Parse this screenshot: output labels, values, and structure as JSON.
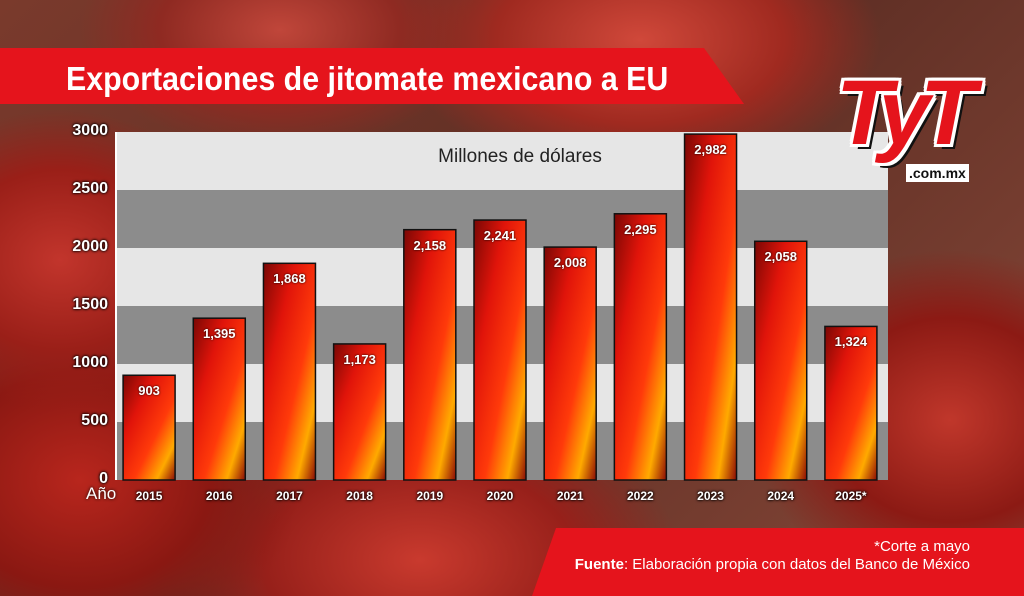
{
  "header": {
    "title": "Exportaciones de jitomate mexicano a EU"
  },
  "logo": {
    "text": "TyT",
    "domain": ".com.mx"
  },
  "footer": {
    "note": "*Corte a mayo",
    "source_label": "Fuente",
    "source_text": ": Elaboración propia con datos del Banco de México"
  },
  "colors": {
    "accent": "#e5141c",
    "bar_top": "#8a0a06",
    "bar_mid": "#ff2a0a",
    "bar_low": "#ffb000"
  },
  "chart_data": {
    "type": "bar",
    "title": "Exportaciones de jitomate mexicano a EU",
    "units_label": "Millones de dólares",
    "xlabel": "Año",
    "ylabel": "",
    "ylim": [
      0,
      3000
    ],
    "yticks": [
      "0",
      "500",
      "1000",
      "1500",
      "2000",
      "2500",
      "3000"
    ],
    "grid": "alternating horizontal bands",
    "categories": [
      "2015",
      "2016",
      "2017",
      "2018",
      "2019",
      "2020",
      "2021",
      "2022",
      "2023",
      "2024",
      "2025*"
    ],
    "values": [
      903,
      1395,
      1868,
      1173,
      2158,
      2241,
      2008,
      2295,
      2982,
      2058,
      1324
    ],
    "value_labels": [
      "903",
      "1,395",
      "1,868",
      "1,173",
      "2,158",
      "2,241",
      "2,008",
      "2,295",
      "2,982",
      "2,058",
      "1,324"
    ]
  }
}
